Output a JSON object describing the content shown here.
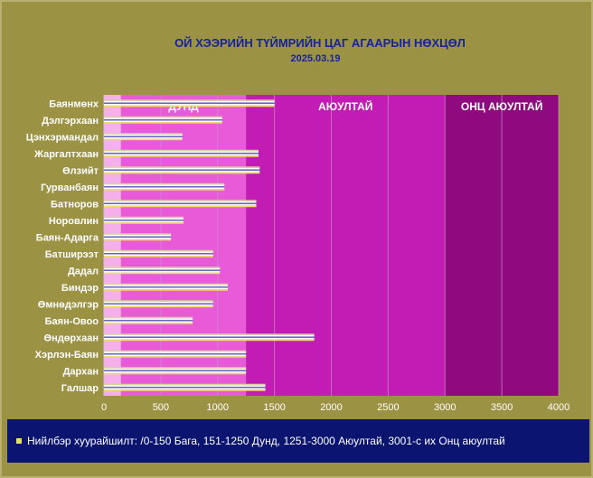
{
  "chart_data": {
    "type": "bar",
    "orientation": "horizontal",
    "title": "ОЙ ХЭЭРИЙН ТҮЙМРИЙН ЦАГ АГААРЫН  НӨХЦӨЛ",
    "subtitle": "2025.03.19",
    "categories": [
      "Баянмөнх",
      "Дэлгэрхаан",
      "Цэнхэрмандал",
      "Жаргалтхаан",
      "Өлзийт",
      "Гурванбаян",
      "Батноров",
      "Норовлин",
      "Баян-Адарга",
      "Батширээт",
      "Дадал",
      "Биндэр",
      "Өмнөдэлгэр",
      "Баян-Овоо",
      "Өндөрхаан",
      "Хэрлэн-Баян",
      "Дархан",
      "Галшар"
    ],
    "values": [
      1500,
      1040,
      690,
      1360,
      1370,
      1060,
      1340,
      700,
      590,
      960,
      1020,
      1090,
      960,
      780,
      1850,
      1250,
      1250,
      1420
    ],
    "xlim": [
      0,
      4000
    ],
    "xticks": [
      "0",
      "500",
      "1000",
      "1500",
      "2000",
      "2500",
      "3000",
      "3500",
      "4000"
    ],
    "grid": true,
    "zones": [
      {
        "label": "",
        "from": 0,
        "to": 150,
        "color": "#f5b0ec"
      },
      {
        "label": "ДУНД",
        "from": 150,
        "to": 1250,
        "color": "#e85ad8"
      },
      {
        "label": "АЮУЛТАЙ",
        "from": 1250,
        "to": 3000,
        "color": "#c21cb4"
      },
      {
        "label": "ОНЦ АЮУЛТАЙ",
        "from": 3000,
        "to": 4000,
        "color": "#8e0a7e"
      }
    ],
    "bar_colors": [
      "#d8d2a0",
      "#ffffff",
      "#6868c0",
      "#ffffff",
      "#e8e060"
    ]
  },
  "legend": {
    "text": "Нийлбэр хуурайшилт: /0-150 Бага, 151-1250 Дунд, 1251-3000 Аюултай, 3001-с их Онц аюултай",
    "color": "#e8e060"
  }
}
